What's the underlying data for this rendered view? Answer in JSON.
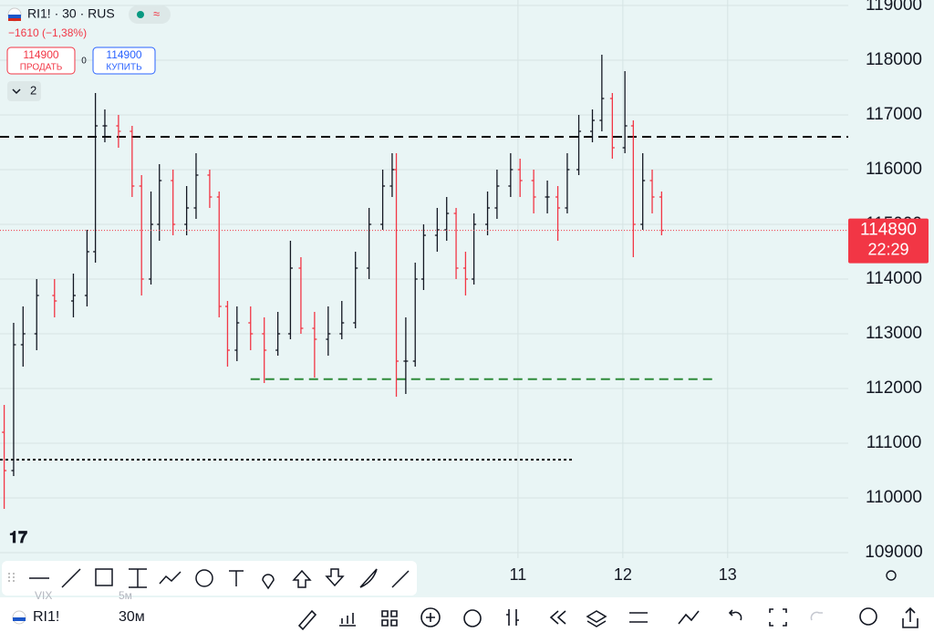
{
  "header": {
    "symbol": "RI1! · 30 · RUS",
    "change": "−1610 (−1,38%)",
    "sell_price": "114900",
    "sell_label": "ПРОДАТЬ",
    "spread": "0",
    "buy_price": "114900",
    "buy_label": "КУПИТЬ",
    "indicators_count": "2"
  },
  "chart_data": {
    "type": "ohlc",
    "x": [
      6.1,
      6.19,
      6.28,
      6.41,
      6.58,
      6.76,
      6.89,
      6.97,
      7.06,
      7.19,
      7.32,
      7.41,
      7.5,
      7.58,
      7.71,
      7.84,
      7.93,
      8.06,
      8.15,
      8.23,
      8.32,
      8.45,
      8.58,
      8.71,
      8.83,
      8.93,
      9.06,
      9.19,
      9.32,
      9.45,
      9.58,
      9.71,
      9.8,
      9.84,
      9.93,
      10.02,
      10.1,
      10.23,
      10.32,
      10.41,
      10.5,
      10.58,
      10.71,
      10.8,
      10.93,
      11.02,
      11.15,
      11.28,
      11.38,
      11.47,
      11.58,
      11.71,
      11.8,
      11.9,
      12.02,
      12.1,
      12.19,
      12.28,
      12.37
    ],
    "open": [
      111200,
      110500,
      112800,
      113000,
      113700,
      113600,
      113700,
      114500,
      116800,
      116800,
      116700,
      115700,
      114000,
      115000,
      115800,
      115000,
      115300,
      115900,
      115500,
      113500,
      112700,
      113200,
      113000,
      112700,
      113000,
      114200,
      113100,
      112900,
      113000,
      113200,
      114200,
      115000,
      115700,
      116000,
      112500,
      112500,
      114000,
      114800,
      114900,
      115200,
      114200,
      114000,
      115000,
      115300,
      115700,
      116000,
      115800,
      115500,
      115500,
      115300,
      116000,
      116700,
      116900,
      117300,
      116400,
      116800,
      115000,
      115800,
      115500
    ],
    "high": [
      111700,
      113200,
      113500,
      114000,
      114000,
      114100,
      114900,
      117400,
      117100,
      117000,
      116800,
      115900,
      115600,
      116100,
      116000,
      115700,
      116300,
      116000,
      115600,
      113600,
      113500,
      113500,
      113300,
      113400,
      114700,
      114400,
      113400,
      113500,
      113600,
      114500,
      115300,
      116000,
      116300,
      116300,
      113300,
      114300,
      115000,
      115300,
      115500,
      115300,
      114500,
      115200,
      115600,
      116000,
      116300,
      116200,
      116000,
      115800,
      115700,
      116300,
      117000,
      117100,
      118100,
      117400,
      117800,
      116900,
      116300,
      116000,
      115600
    ],
    "low": [
      109800,
      110400,
      112400,
      112700,
      113300,
      113300,
      113500,
      114300,
      116500,
      116400,
      115500,
      113700,
      113900,
      114700,
      114800,
      114800,
      115100,
      115300,
      113300,
      112400,
      112500,
      112700,
      112100,
      112600,
      112900,
      113000,
      112200,
      112600,
      112900,
      113100,
      114000,
      114900,
      115500,
      111850,
      111900,
      112400,
      113800,
      114500,
      114700,
      114000,
      113700,
      113900,
      114800,
      115100,
      115500,
      115500,
      115200,
      115200,
      114700,
      115200,
      115900,
      116500,
      116700,
      116200,
      116300,
      114400,
      114900,
      115200,
      114800
    ],
    "close": [
      110500,
      112800,
      113000,
      113700,
      113600,
      113700,
      114500,
      116800,
      116800,
      116700,
      115700,
      114000,
      115000,
      115800,
      115000,
      115300,
      115900,
      115500,
      113500,
      112700,
      113200,
      113000,
      112700,
      113000,
      114200,
      113100,
      112900,
      113000,
      113200,
      114200,
      115000,
      115700,
      116000,
      112500,
      112500,
      114000,
      114800,
      114900,
      115200,
      114200,
      114000,
      115000,
      115300,
      115700,
      116000,
      115800,
      115500,
      115500,
      115300,
      116000,
      116700,
      116900,
      117300,
      116400,
      116800,
      115000,
      115800,
      115500,
      114890
    ],
    "up_color": "#131722",
    "down_color": "#f23645",
    "xlim": [
      6.06,
      14.15
    ],
    "xticks": [
      11,
      12,
      13
    ],
    "ylim": [
      108900,
      119100
    ],
    "yticks": [
      109000,
      110000,
      111000,
      112000,
      113000,
      114000,
      115000,
      116000,
      117000,
      118000,
      119000
    ],
    "grid": true,
    "hlines": [
      {
        "value": 116600,
        "x": [
          6.06,
          14.15
        ],
        "color": "#000000",
        "dash": "10 6"
      },
      {
        "value": 112170,
        "x": [
          8.45,
          12.87
        ],
        "color": "#2e8b3a",
        "dash": "10 6"
      },
      {
        "value": 110700,
        "x": [
          6.06,
          11.52
        ],
        "color": "#000000",
        "dash": "3 3"
      }
    ],
    "last_price": 114890,
    "countdown": "22:29",
    "last_color": "#f23645"
  },
  "bottom_bar": {
    "symbol": "RI1!",
    "interval": "30м",
    "prev_symbol": "VIX",
    "prev_interval": "5м"
  }
}
